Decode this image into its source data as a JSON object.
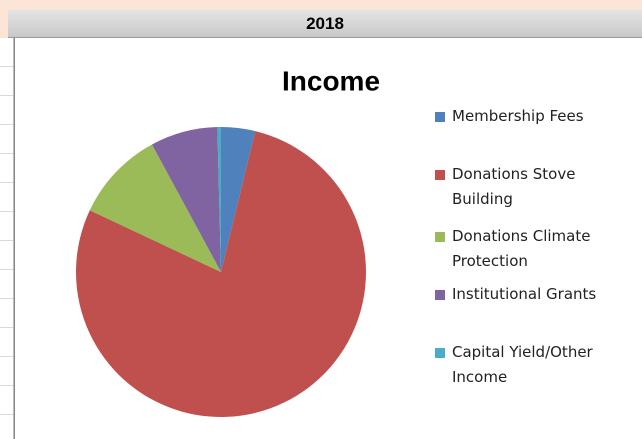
{
  "header": "2018",
  "chart_data": {
    "type": "pie",
    "title": "Income",
    "categories": [
      "Membership Fees",
      "Donations Stove Building",
      "Donations Climate Protection",
      "Institutional Grants",
      "Capital Yield/Other Income"
    ],
    "values": [
      3.8,
      78.2,
      10.1,
      7.5,
      0.4
    ],
    "colors": [
      "#4f81bd",
      "#c0504d",
      "#9bbb59",
      "#8064a2",
      "#4bacc6"
    ],
    "legend": "right"
  }
}
